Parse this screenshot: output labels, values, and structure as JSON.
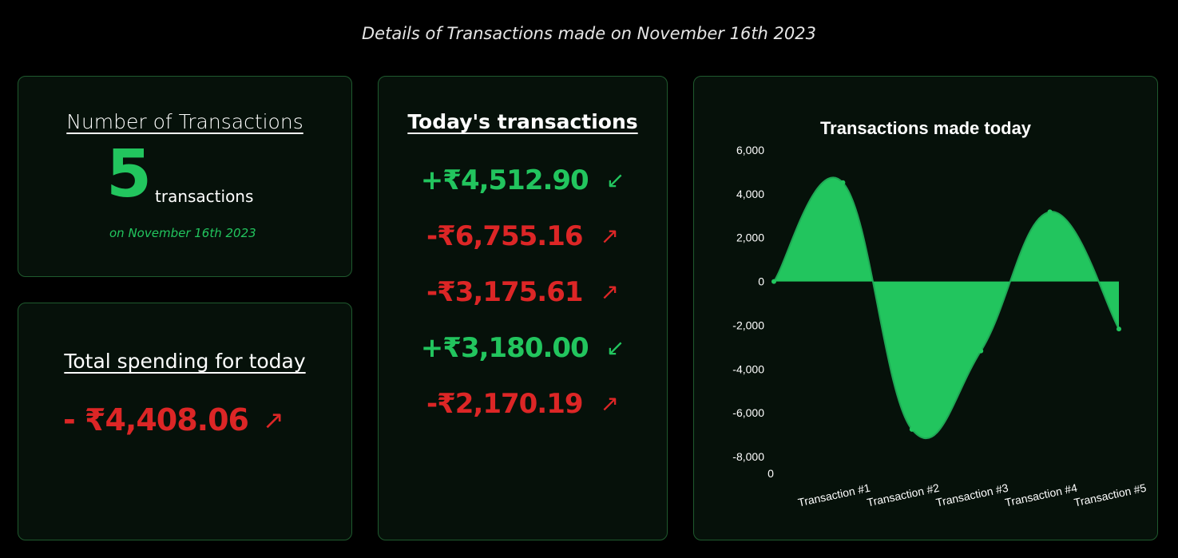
{
  "header": {
    "title": "Details of Transactions made on November 16th 2023"
  },
  "count_card": {
    "heading": "Number of Transactions",
    "number": "5",
    "unit": "transactions",
    "date": "on November 16th 2023"
  },
  "total_card": {
    "heading": "Total spending for today",
    "amount": "- ₹4,408.06",
    "arrow": "↗"
  },
  "list_card": {
    "heading": "Today's transactions",
    "items": [
      {
        "amount": "+₹4,512.90",
        "direction": "in",
        "arrow": "↙"
      },
      {
        "amount": "-₹6,755.16",
        "direction": "out",
        "arrow": "↗"
      },
      {
        "amount": "-₹3,175.61",
        "direction": "out",
        "arrow": "↗"
      },
      {
        "amount": "+₹3,180.00",
        "direction": "in",
        "arrow": "↙"
      },
      {
        "amount": "-₹2,170.19",
        "direction": "out",
        "arrow": "↗"
      }
    ]
  },
  "colors": {
    "positive": "#22c55e",
    "negative": "#dc2626"
  },
  "chart_data": {
    "type": "area",
    "title": "Transactions made today",
    "categories": [
      "0",
      "Transaction #1",
      "Transaction #2",
      "Transaction #3",
      "Transaction #4",
      "Transaction #5"
    ],
    "values": [
      0,
      4512.9,
      -6755.16,
      -3175.61,
      3180.0,
      -2170.19
    ],
    "ylim": [
      -8000,
      6000
    ],
    "yticks": [
      "6,000",
      "4,000",
      "2,000",
      "0",
      "-2,000",
      "-4,000",
      "-6,000",
      "-8,000"
    ],
    "color": "#22c55e",
    "grid": false,
    "legend": "none"
  }
}
